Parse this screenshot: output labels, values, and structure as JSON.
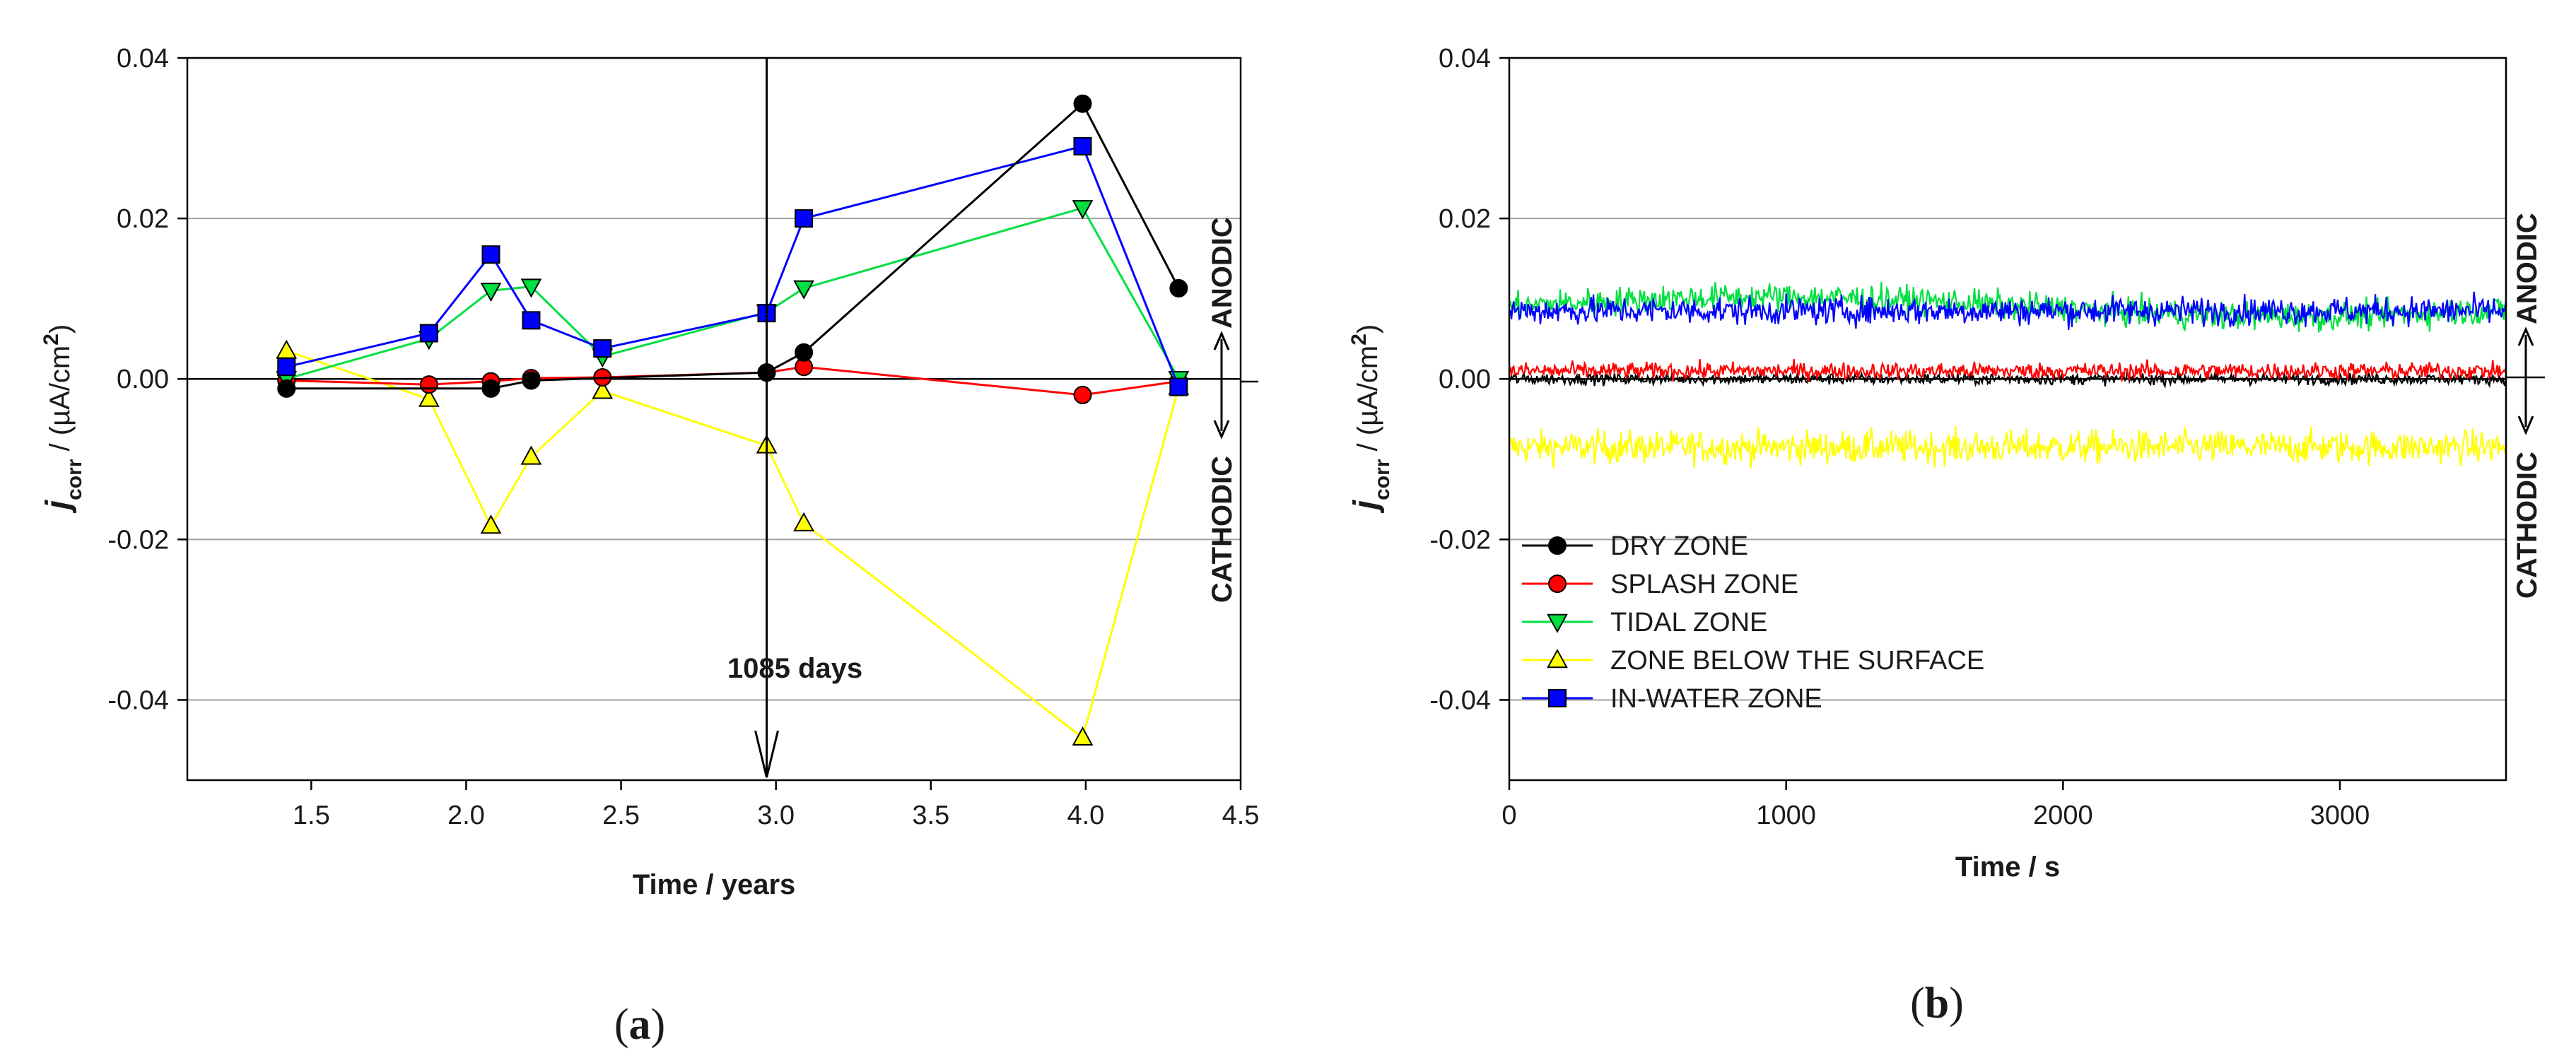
{
  "colors": {
    "dry": "#000000",
    "splash": "#ff0000",
    "tidal": "#00e040",
    "below": "#ffff00",
    "water": "#0000ff",
    "grid": "#a0a0a0"
  },
  "chart_data": [
    {
      "id": "a",
      "type": "line",
      "panel_label_open": "(",
      "panel_label_letter": "a",
      "panel_label_close": ")",
      "xlabel": "Time / years",
      "ylabel_main": "j",
      "ylabel_sub": "corr",
      "ylabel_unit": " / (µA/cm",
      "ylabel_sup": "2",
      "ylabel_close": ")",
      "xlim": [
        1.1,
        4.5
      ],
      "ylim": [
        -0.05,
        0.04
      ],
      "xticks": [
        1.5,
        2.0,
        2.5,
        3.0,
        3.5,
        4.0,
        4.5
      ],
      "xtick_labels": [
        "1.5",
        "2.0",
        "2.5",
        "3.0",
        "3.5",
        "4.0",
        "4.5"
      ],
      "yticks": [
        0.04,
        0.02,
        0.0,
        -0.02,
        -0.04
      ],
      "ytick_labels": [
        "0.04",
        "0.02",
        "0.00",
        "-0.02",
        "-0.04"
      ],
      "gridlines": [
        0.02,
        -0.02,
        -0.04
      ],
      "annotation": {
        "text": "1085 days",
        "x": 2.97
      },
      "side_labels": {
        "anodic": "ANODIC",
        "cathodic": "CATHODIC"
      },
      "series": [
        {
          "name": "DRY ZONE",
          "key": "dry",
          "marker": "circle",
          "x": [
            1.42,
            2.08,
            2.21,
            2.97,
            3.09,
            3.99,
            4.3
          ],
          "y": [
            -0.0012,
            -0.0012,
            -0.0002,
            0.0008,
            0.0033,
            0.0343,
            0.0113
          ]
        },
        {
          "name": "SPLASH ZONE",
          "key": "splash",
          "marker": "circle",
          "x": [
            1.42,
            1.88,
            2.08,
            2.21,
            2.44,
            2.97,
            3.09,
            3.99,
            4.3
          ],
          "y": [
            -0.0002,
            -0.0007,
            -0.0003,
            0.0001,
            0.0002,
            0.0008,
            0.0015,
            -0.002,
            -0.0003
          ]
        },
        {
          "name": "TIDAL ZONE",
          "key": "tidal",
          "marker": "triangle-down",
          "x": [
            1.42,
            1.88,
            2.08,
            2.21,
            2.44,
            2.97,
            3.09,
            3.99,
            4.3
          ],
          "y": [
            0.0,
            0.005,
            0.011,
            0.0115,
            0.0028,
            0.0083,
            0.0113,
            0.0213,
            0.0
          ]
        },
        {
          "name": "ZONE BELOW THE SURFACE",
          "key": "below",
          "marker": "triangle-up",
          "x": [
            1.42,
            1.88,
            2.08,
            2.21,
            2.44,
            2.97,
            3.09,
            3.99,
            4.3
          ],
          "y": [
            0.0035,
            -0.0025,
            -0.0183,
            -0.0097,
            -0.0015,
            -0.0083,
            -0.018,
            -0.0447,
            -0.001
          ]
        },
        {
          "name": "IN-WATER ZONE",
          "key": "water",
          "marker": "square",
          "x": [
            1.42,
            1.88,
            2.08,
            2.21,
            2.44,
            2.97,
            3.09,
            3.99,
            4.3
          ],
          "y": [
            0.0015,
            0.0057,
            0.0155,
            0.0073,
            0.0038,
            0.0082,
            0.02,
            0.029,
            -0.001
          ]
        }
      ]
    },
    {
      "id": "b",
      "type": "line",
      "panel_label_open": "(",
      "panel_label_letter": "b",
      "panel_label_close": ")",
      "xlabel": "Time / s",
      "ylabel_main": "j",
      "ylabel_sub": "corr",
      "ylabel_unit": " / (µA/cm",
      "ylabel_sup": "2",
      "ylabel_close": ")",
      "xlim": [
        0,
        3600
      ],
      "ylim": [
        -0.05,
        0.04
      ],
      "xticks": [
        0,
        1000,
        2000,
        3000
      ],
      "xtick_labels": [
        "0",
        "1000",
        "2000",
        "3000"
      ],
      "yticks": [
        0.04,
        0.02,
        0.0,
        -0.02,
        -0.04
      ],
      "ytick_labels": [
        "0.04",
        "0.02",
        "0.00",
        "-0.02",
        "-0.04"
      ],
      "gridlines": [
        0.02,
        -0.02,
        -0.04
      ],
      "side_labels": {
        "anodic": "ANODIC",
        "cathodic": "CATHODIC"
      },
      "series": [
        {
          "name": "DRY ZONE",
          "key": "dry",
          "marker": "circle",
          "mean": 0.0,
          "noise": 0.0012
        },
        {
          "name": "SPLASH ZONE",
          "key": "splash",
          "marker": "circle",
          "mean": 0.001,
          "noise": 0.0018
        },
        {
          "name": "TIDAL ZONE",
          "key": "tidal",
          "marker": "triangle-down",
          "mean": 0.009,
          "noise": 0.003
        },
        {
          "name": "ZONE BELOW THE SURFACE",
          "key": "below",
          "marker": "triangle-up",
          "mean": -0.0085,
          "noise": 0.0035
        },
        {
          "name": "IN-WATER ZONE",
          "key": "water",
          "marker": "square",
          "mean": 0.0085,
          "noise": 0.003
        }
      ],
      "legend": {
        "position": "lower-left"
      }
    }
  ]
}
